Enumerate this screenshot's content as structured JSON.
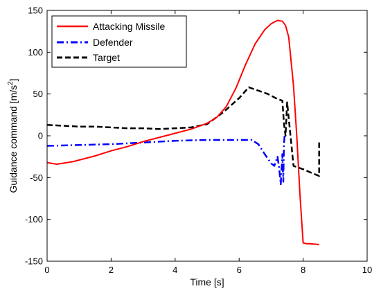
{
  "chart_data": {
    "type": "line",
    "xlabel": "Time [s]",
    "ylabel_main": "Guidance command  [m/s",
    "ylabel_sup": "2",
    "ylabel_close": "]",
    "xlim": [
      0,
      10
    ],
    "ylim": [
      -150,
      150
    ],
    "xticks": [
      0,
      2,
      4,
      6,
      8,
      10
    ],
    "yticks": [
      -150,
      -100,
      -50,
      0,
      50,
      100,
      150
    ],
    "grid": false,
    "legend_position": "top-left",
    "series": [
      {
        "name": "Attacking Missile",
        "color": "#ff0000",
        "style": "solid",
        "x": [
          0,
          0.3,
          0.8,
          1.5,
          2.0,
          2.5,
          3.0,
          3.5,
          4.0,
          4.5,
          5.0,
          5.3,
          5.6,
          5.9,
          6.2,
          6.5,
          6.8,
          7.0,
          7.2,
          7.35,
          7.45,
          7.55,
          7.7,
          7.8,
          7.9,
          8.0,
          8.1,
          8.2,
          8.5
        ],
        "y": [
          -32,
          -34,
          -31,
          -24,
          -18,
          -13,
          -7,
          -2,
          3,
          8,
          15,
          22,
          35,
          57,
          85,
          110,
          127,
          134,
          138,
          137,
          132,
          118,
          60,
          0,
          -70,
          -128,
          -129,
          -129,
          -130
        ]
      },
      {
        "name": "Defender",
        "color": "#0000ff",
        "style": "dashdot",
        "x": [
          0,
          1,
          2,
          3,
          4,
          5,
          5.5,
          5.8,
          6.0,
          6.2,
          6.4,
          6.6,
          6.8,
          7.0,
          7.1,
          7.2,
          7.25,
          7.3,
          7.35,
          7.38,
          7.4,
          7.42
        ],
        "y": [
          -12,
          -11,
          -10,
          -8,
          -6,
          -5,
          -5,
          -5,
          -5,
          -5,
          -5,
          -10,
          -22,
          -33,
          -36,
          -25,
          -38,
          -58,
          -22,
          -55,
          -10,
          0
        ]
      },
      {
        "name": "Target",
        "color": "#000000",
        "style": "dashed",
        "x": [
          0,
          0.5,
          1,
          1.5,
          2,
          2.5,
          3,
          3.5,
          4,
          4.5,
          5,
          5.5,
          6.0,
          6.3,
          6.6,
          6.9,
          7.2,
          7.35,
          7.4,
          7.45,
          7.5,
          7.7,
          8.0,
          8.3,
          8.5,
          8.5
        ],
        "y": [
          13,
          12,
          11,
          11,
          10,
          9,
          9,
          8,
          9,
          10,
          14,
          28,
          45,
          58,
          54,
          50,
          44,
          42,
          15,
          0,
          40,
          -36,
          -40,
          -45,
          -48,
          -5
        ]
      }
    ]
  }
}
